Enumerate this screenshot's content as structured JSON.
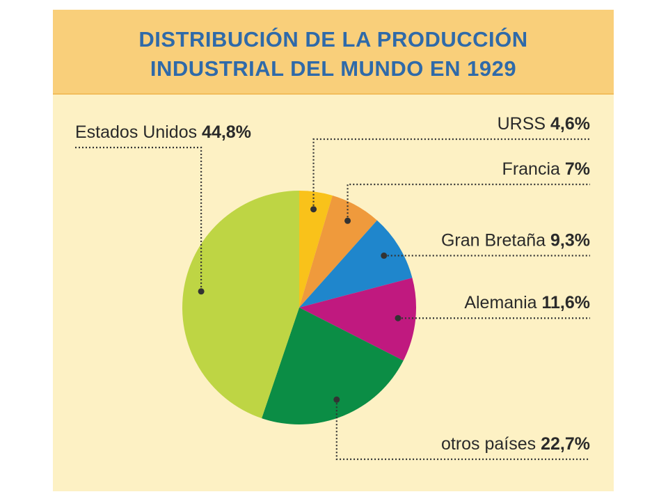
{
  "title_lines": [
    "DISTRIBUCIÓN DE LA PRODUCCIÓN",
    "INDUSTRIAL DEL MUNDO EN 1929"
  ],
  "colors": {
    "title_band": "#f9cf7a",
    "background": "#fdf1c4",
    "title_text": "#2f6aa9"
  },
  "chart_data": {
    "type": "pie",
    "title": "DISTRIBUCIÓN DE LA PRODUCCIÓN INDUSTRIAL DEL MUNDO EN 1929",
    "unit": "%",
    "legend": "labels outside with dotted leader lines",
    "start": "12 o'clock, clockwise",
    "slices": [
      {
        "label": "URSS",
        "value": 4.6,
        "value_text": "4,6%",
        "color": "#f9c21a"
      },
      {
        "label": "Francia",
        "value": 7.0,
        "value_text": "7%",
        "color": "#ef9a3c"
      },
      {
        "label": "Gran Bretaña",
        "value": 9.3,
        "value_text": "9,3%",
        "color": "#1f86cc"
      },
      {
        "label": "Alemania",
        "value": 11.6,
        "value_text": "11,6%",
        "color": "#c0197f"
      },
      {
        "label": "otros países",
        "value": 22.7,
        "value_text": "22,7%",
        "color": "#0b8d45"
      },
      {
        "label": "Estados Unidos",
        "value": 44.8,
        "value_text": "44,8%",
        "color": "#bed544"
      }
    ]
  }
}
